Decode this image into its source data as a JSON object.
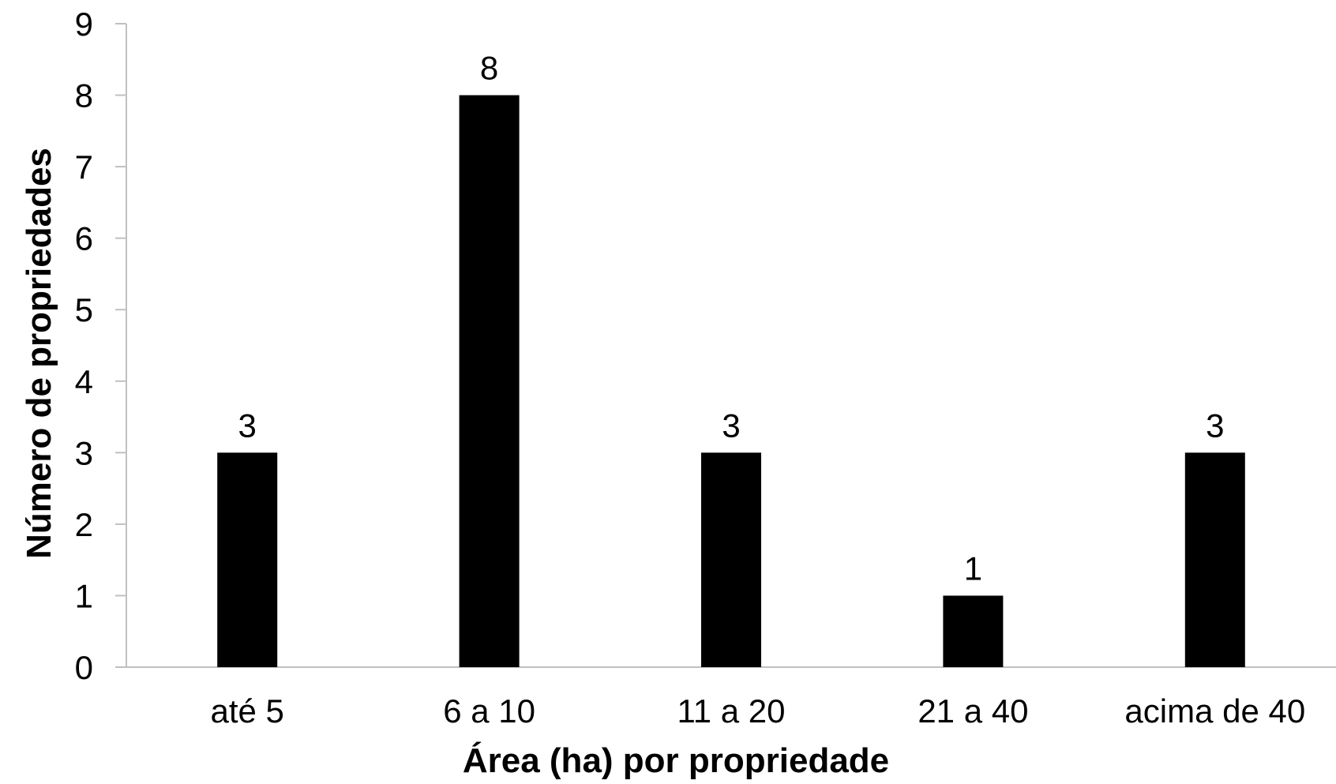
{
  "chart_data": {
    "type": "bar",
    "categories": [
      "até 5",
      "6 a 10",
      "11 a 20",
      "21 a 40",
      "acima de 40"
    ],
    "values": [
      3,
      8,
      3,
      1,
      3
    ],
    "data_labels": [
      "3",
      "8",
      "3",
      "1",
      "3"
    ],
    "xlabel": "Área (ha) por propriedade",
    "ylabel": "Número de propriedades",
    "ylim": [
      0,
      9
    ],
    "yticks": [
      "0",
      "1",
      "2",
      "3",
      "4",
      "5",
      "6",
      "7",
      "8",
      "9"
    ],
    "grid": false,
    "legend": "none",
    "colors": {
      "bar": "#000000",
      "axis": "#c0c0c0",
      "text": "#000000",
      "background": "#ffffff"
    }
  }
}
